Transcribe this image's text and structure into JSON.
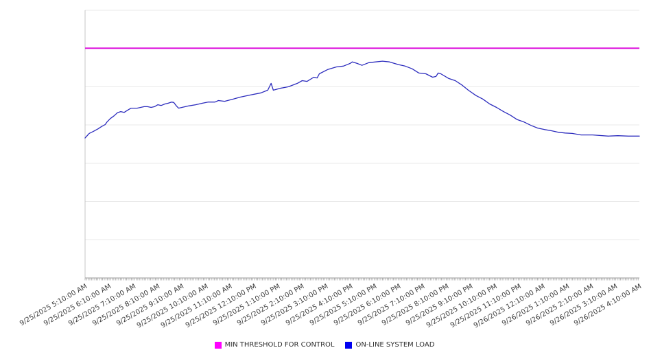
{
  "chart_data": {
    "type": "line",
    "title": "",
    "x_axis": {
      "tick_labels": [
        "9/25/2025 5:10:00 AM",
        "9/25/2025 6:10:00 AM",
        "9/25/2025 7:10:00 AM",
        "9/25/2025 8:10:00 AM",
        "9/25/2025 9:10:00 AM",
        "9/25/2025 10:10:00 AM",
        "9/25/2025 11:10:00 AM",
        "9/25/2025 12:10:00 PM",
        "9/25/2025 1:10:00 PM",
        "9/25/2025 2:10:00 PM",
        "9/25/2025 3:10:00 PM",
        "9/25/2025 4:10:00 PM",
        "9/25/2025 5:10:00 PM",
        "9/25/2025 6:10:00 PM",
        "9/25/2025 7:10:00 PM",
        "9/25/2025 8:10:00 PM",
        "9/25/2025 9:10:00 PM",
        "9/25/2025 10:10:00 PM",
        "9/25/2025 11:10:00 PM",
        "9/26/2025 12:10:00 AM",
        "9/26/2025 1:10:00 AM",
        "9/26/2025 2:10:00 AM",
        "9/26/2025 3:10:00 AM",
        "9/26/2025 4:10:00 AM"
      ],
      "label_rotation_deg": -30,
      "hours_span": 23,
      "minor_ticks_dense": true
    },
    "y_axis": {
      "tick_labels": [],
      "note": "no y-axis value labels visible; 7 evenly spaced horizontal gridlines above baseline",
      "gridline_count": 7,
      "y_units": "grid units (baseline = 0, one unit per gridline)",
      "ylim": [
        0,
        7
      ]
    },
    "grid": {
      "horizontal": true,
      "vertical": false,
      "color": "#e8e8e8",
      "axis_color": "#9a9a9a",
      "axis_line_color": "#c4c4c4"
    },
    "legend_position": "bottom-center",
    "series": [
      {
        "name": "MIN THRESHOLD FOR CONTROL",
        "kind": "threshold-horizontal-line",
        "value": 6.01,
        "line_color": "#dd14dd",
        "swatch_color": "#ff00ff"
      },
      {
        "name": "ON-LINE SYSTEM LOAD",
        "kind": "line",
        "line_color": "#2b2bbd",
        "swatch_color": "#0000f0",
        "x_units": "hours after 5:10 AM 9/25/2025",
        "points": [
          [
            0.0,
            3.66
          ],
          [
            0.17,
            3.78
          ],
          [
            0.34,
            3.83
          ],
          [
            0.54,
            3.9
          ],
          [
            0.68,
            3.96
          ],
          [
            0.83,
            4.01
          ],
          [
            0.91,
            4.08
          ],
          [
            1.05,
            4.17
          ],
          [
            1.2,
            4.24
          ],
          [
            1.34,
            4.32
          ],
          [
            1.48,
            4.35
          ],
          [
            1.62,
            4.33
          ],
          [
            1.77,
            4.39
          ],
          [
            1.91,
            4.44
          ],
          [
            2.16,
            4.44
          ],
          [
            2.45,
            4.48
          ],
          [
            2.59,
            4.48
          ],
          [
            2.74,
            4.46
          ],
          [
            2.88,
            4.48
          ],
          [
            3.02,
            4.53
          ],
          [
            3.16,
            4.51
          ],
          [
            3.31,
            4.55
          ],
          [
            3.45,
            4.57
          ],
          [
            3.59,
            4.6
          ],
          [
            3.68,
            4.59
          ],
          [
            3.79,
            4.5
          ],
          [
            3.88,
            4.44
          ],
          [
            4.02,
            4.46
          ],
          [
            4.3,
            4.5
          ],
          [
            4.59,
            4.53
          ],
          [
            4.87,
            4.57
          ],
          [
            5.1,
            4.6
          ],
          [
            5.39,
            4.6
          ],
          [
            5.53,
            4.64
          ],
          [
            5.79,
            4.62
          ],
          [
            6.16,
            4.68
          ],
          [
            6.44,
            4.73
          ],
          [
            6.81,
            4.78
          ],
          [
            7.3,
            4.84
          ],
          [
            7.58,
            4.91
          ],
          [
            7.72,
            5.09
          ],
          [
            7.81,
            4.91
          ],
          [
            8.09,
            4.96
          ],
          [
            8.44,
            5.0
          ],
          [
            8.81,
            5.09
          ],
          [
            9.01,
            5.16
          ],
          [
            9.21,
            5.14
          ],
          [
            9.49,
            5.25
          ],
          [
            9.63,
            5.23
          ],
          [
            9.72,
            5.34
          ],
          [
            10.06,
            5.45
          ],
          [
            10.43,
            5.52
          ],
          [
            10.72,
            5.54
          ],
          [
            11.0,
            5.61
          ],
          [
            11.09,
            5.65
          ],
          [
            11.29,
            5.61
          ],
          [
            11.49,
            5.56
          ],
          [
            11.77,
            5.63
          ],
          [
            12.06,
            5.65
          ],
          [
            12.34,
            5.67
          ],
          [
            12.63,
            5.65
          ],
          [
            13.0,
            5.58
          ],
          [
            13.28,
            5.54
          ],
          [
            13.57,
            5.47
          ],
          [
            13.85,
            5.36
          ],
          [
            14.14,
            5.34
          ],
          [
            14.42,
            5.25
          ],
          [
            14.56,
            5.27
          ],
          [
            14.65,
            5.36
          ],
          [
            14.76,
            5.34
          ],
          [
            15.08,
            5.22
          ],
          [
            15.36,
            5.16
          ],
          [
            15.65,
            5.04
          ],
          [
            15.9,
            4.91
          ],
          [
            16.22,
            4.77
          ],
          [
            16.5,
            4.68
          ],
          [
            16.79,
            4.55
          ],
          [
            17.07,
            4.46
          ],
          [
            17.36,
            4.35
          ],
          [
            17.64,
            4.26
          ],
          [
            17.93,
            4.14
          ],
          [
            18.21,
            4.08
          ],
          [
            18.5,
            3.99
          ],
          [
            18.78,
            3.92
          ],
          [
            19.07,
            3.88
          ],
          [
            19.35,
            3.85
          ],
          [
            19.64,
            3.81
          ],
          [
            19.92,
            3.79
          ],
          [
            20.21,
            3.78
          ],
          [
            20.58,
            3.74
          ],
          [
            21.06,
            3.74
          ],
          [
            21.71,
            3.71
          ],
          [
            22.11,
            3.72
          ],
          [
            22.54,
            3.71
          ],
          [
            23.0,
            3.71
          ]
        ]
      }
    ]
  },
  "legend": {
    "items": [
      {
        "label": "MIN THRESHOLD FOR CONTROL"
      },
      {
        "label": "ON-LINE SYSTEM LOAD"
      }
    ]
  }
}
